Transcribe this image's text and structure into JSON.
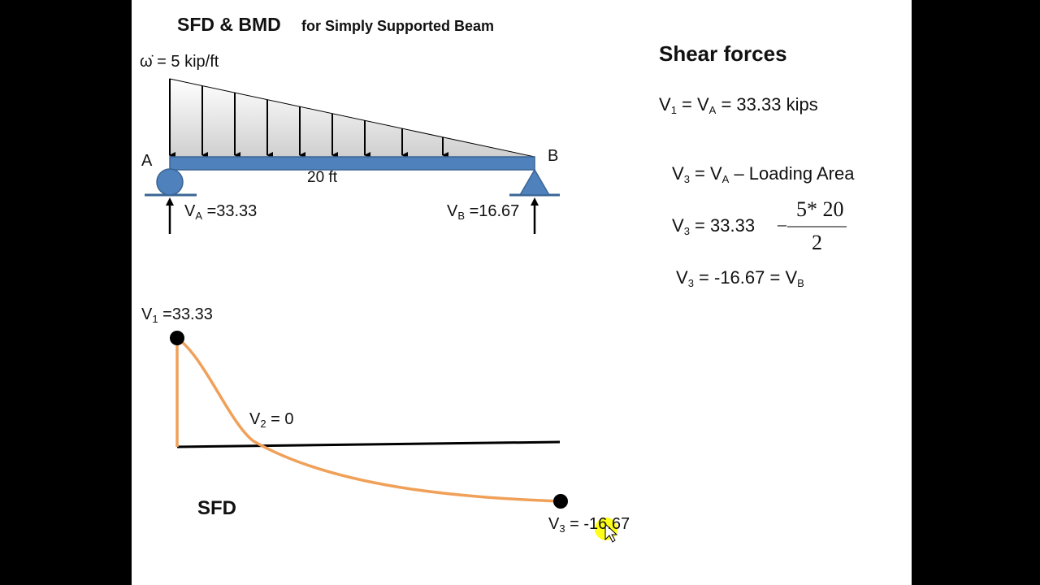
{
  "title": {
    "main": "SFD & BMD",
    "sub": "for Simply Supported Beam"
  },
  "beam": {
    "load_label": "ω̇ = 5 kip/ft",
    "support_a_label": "A",
    "support_b_label": "B",
    "span_label": "20 ft",
    "reaction_a": {
      "sym": "V",
      "sub": "A",
      "text": " =33.33"
    },
    "reaction_b": {
      "sym": "V",
      "sub": "B",
      "text": " =16.67"
    }
  },
  "sfd": {
    "label": "SFD",
    "v1_label": {
      "sym": "V",
      "sub": "1",
      "text": " =33.33"
    },
    "v2_label": {
      "sym": "V",
      "sub": "2",
      "text": " = 0"
    },
    "v3_label": {
      "sym": "V",
      "sub": "3",
      "text": " = -16.67"
    }
  },
  "calc": {
    "heading": "Shear forces",
    "line1": {
      "a": "V",
      "a_sub": "1",
      "b": " = V",
      "b_sub": "A",
      "c": " = 33.33 kips"
    },
    "line2": {
      "a": "V",
      "a_sub": "3",
      "b": " = V",
      "b_sub": "A",
      "c": " – Loading Area"
    },
    "line3": {
      "a": "V",
      "a_sub": "3",
      "c": " = 33.33"
    },
    "line3_fraction": {
      "minus": "–",
      "numerator": "5* 20",
      "denominator": "2"
    },
    "line4": {
      "a": "V",
      "a_sub": "3",
      "c": " = -16.67 = V",
      "d_sub": "B"
    }
  },
  "colors": {
    "beam": "#4f81bd",
    "beam_edge": "#3a6595",
    "curve": "#f0a058",
    "load_fill": "#d8d8d8",
    "cursor_highlight": "#ffff00"
  }
}
